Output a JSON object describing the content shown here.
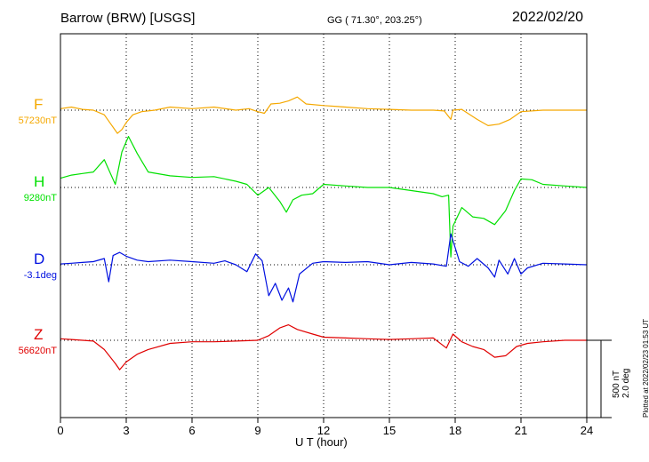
{
  "header": {
    "station": "Barrow (BRW)  [USGS]",
    "coords": "GG ( 71.30°, 203.25°)",
    "date": "2022/02/20"
  },
  "footer": {
    "scale_line1": "500 nT",
    "scale_line2": "2.0 deg",
    "plotted_at": "Plotted at 2022/02/23 01:53 UT"
  },
  "chart_data": {
    "type": "line",
    "xlabel": "U T (hour)",
    "xlim": [
      0,
      24
    ],
    "xticks": [
      0,
      3,
      6,
      9,
      12,
      15,
      18,
      21,
      24
    ],
    "grid": true,
    "scale": "500 nT / 2.0 deg per vertical division",
    "series": [
      {
        "name": "F",
        "baseline_label": "57230nT",
        "color": "#f5a800",
        "points": [
          [
            0,
            10
          ],
          [
            0.5,
            20
          ],
          [
            1,
            5
          ],
          [
            1.5,
            0
          ],
          [
            2,
            -30
          ],
          [
            2.3,
            -90
          ],
          [
            2.6,
            -150
          ],
          [
            2.8,
            -125
          ],
          [
            3,
            -80
          ],
          [
            3.3,
            -30
          ],
          [
            3.7,
            -10
          ],
          [
            4.3,
            0
          ],
          [
            5,
            20
          ],
          [
            6,
            10
          ],
          [
            7,
            20
          ],
          [
            8,
            0
          ],
          [
            8.6,
            10
          ],
          [
            9,
            -10
          ],
          [
            9.3,
            -20
          ],
          [
            9.6,
            40
          ],
          [
            10,
            45
          ],
          [
            10.4,
            60
          ],
          [
            10.8,
            85
          ],
          [
            11.2,
            40
          ],
          [
            12,
            30
          ],
          [
            13,
            20
          ],
          [
            14,
            10
          ],
          [
            15,
            5
          ],
          [
            16,
            0
          ],
          [
            17,
            0
          ],
          [
            17.5,
            -5
          ],
          [
            17.8,
            -60
          ],
          [
            17.9,
            0
          ],
          [
            18.3,
            5
          ],
          [
            19,
            -60
          ],
          [
            19.5,
            -100
          ],
          [
            20,
            -90
          ],
          [
            20.5,
            -60
          ],
          [
            21,
            -10
          ],
          [
            22,
            0
          ],
          [
            23,
            0
          ],
          [
            24,
            0
          ]
        ]
      },
      {
        "name": "H",
        "baseline_label": "9280nT",
        "color": "#00e000",
        "points": [
          [
            0,
            60
          ],
          [
            0.5,
            80
          ],
          [
            1,
            90
          ],
          [
            1.5,
            100
          ],
          [
            2,
            180
          ],
          [
            2.5,
            20
          ],
          [
            2.8,
            230
          ],
          [
            3.1,
            330
          ],
          [
            3.5,
            220
          ],
          [
            4,
            100
          ],
          [
            5,
            75
          ],
          [
            6,
            65
          ],
          [
            7,
            70
          ],
          [
            8,
            40
          ],
          [
            8.5,
            20
          ],
          [
            9,
            -50
          ],
          [
            9.5,
            0
          ],
          [
            10,
            -90
          ],
          [
            10.3,
            -160
          ],
          [
            10.6,
            -80
          ],
          [
            11,
            -50
          ],
          [
            11.5,
            -40
          ],
          [
            12,
            20
          ],
          [
            13,
            10
          ],
          [
            14,
            0
          ],
          [
            15,
            0
          ],
          [
            16,
            -20
          ],
          [
            17,
            -40
          ],
          [
            17.4,
            -60
          ],
          [
            17.7,
            -50
          ],
          [
            17.8,
            -450
          ],
          [
            17.9,
            -250
          ],
          [
            18.3,
            -130
          ],
          [
            18.8,
            -190
          ],
          [
            19.3,
            -200
          ],
          [
            19.8,
            -240
          ],
          [
            20.3,
            -150
          ],
          [
            20.7,
            -20
          ],
          [
            21,
            55
          ],
          [
            21.5,
            50
          ],
          [
            22,
            20
          ],
          [
            23,
            10
          ],
          [
            24,
            0
          ]
        ]
      },
      {
        "name": "D",
        "baseline_label": "-3.1deg",
        "color": "#0010e0",
        "points": [
          [
            0,
            5
          ],
          [
            0.5,
            10
          ],
          [
            1,
            15
          ],
          [
            1.5,
            20
          ],
          [
            2,
            40
          ],
          [
            2.2,
            -110
          ],
          [
            2.4,
            60
          ],
          [
            2.7,
            80
          ],
          [
            3,
            55
          ],
          [
            3.5,
            30
          ],
          [
            4,
            20
          ],
          [
            5,
            30
          ],
          [
            6,
            20
          ],
          [
            7,
            10
          ],
          [
            7.5,
            25
          ],
          [
            8,
            0
          ],
          [
            8.5,
            -45
          ],
          [
            8.9,
            70
          ],
          [
            9.2,
            25
          ],
          [
            9.5,
            -200
          ],
          [
            9.8,
            -120
          ],
          [
            10.1,
            -230
          ],
          [
            10.4,
            -150
          ],
          [
            10.6,
            -240
          ],
          [
            10.9,
            -60
          ],
          [
            11.5,
            10
          ],
          [
            12,
            20
          ],
          [
            13,
            15
          ],
          [
            14,
            20
          ],
          [
            15,
            0
          ],
          [
            16,
            15
          ],
          [
            17,
            5
          ],
          [
            17.6,
            -10
          ],
          [
            17.8,
            200
          ],
          [
            18.2,
            20
          ],
          [
            18.6,
            -10
          ],
          [
            19,
            40
          ],
          [
            19.5,
            -20
          ],
          [
            19.8,
            -80
          ],
          [
            20,
            30
          ],
          [
            20.4,
            -60
          ],
          [
            20.7,
            40
          ],
          [
            21,
            -60
          ],
          [
            21.3,
            -20
          ],
          [
            22,
            10
          ],
          [
            23,
            5
          ],
          [
            24,
            0
          ]
        ]
      },
      {
        "name": "Z",
        "baseline_label": "56620nT",
        "color": "#e00000",
        "points": [
          [
            0,
            10
          ],
          [
            0.5,
            5
          ],
          [
            1,
            0
          ],
          [
            1.5,
            -5
          ],
          [
            2,
            -60
          ],
          [
            2.5,
            -150
          ],
          [
            2.7,
            -190
          ],
          [
            3,
            -140
          ],
          [
            3.5,
            -90
          ],
          [
            4,
            -60
          ],
          [
            5,
            -20
          ],
          [
            6,
            -10
          ],
          [
            7,
            -10
          ],
          [
            8,
            -5
          ],
          [
            9,
            0
          ],
          [
            9.5,
            30
          ],
          [
            10,
            80
          ],
          [
            10.4,
            100
          ],
          [
            10.8,
            70
          ],
          [
            11.5,
            40
          ],
          [
            12,
            20
          ],
          [
            13,
            15
          ],
          [
            14,
            10
          ],
          [
            15,
            5
          ],
          [
            16,
            10
          ],
          [
            17,
            15
          ],
          [
            17.6,
            -50
          ],
          [
            17.9,
            40
          ],
          [
            18.3,
            -10
          ],
          [
            18.8,
            -40
          ],
          [
            19.3,
            -60
          ],
          [
            19.8,
            -110
          ],
          [
            20.3,
            -100
          ],
          [
            20.8,
            -40
          ],
          [
            21.3,
            -20
          ],
          [
            22,
            -10
          ],
          [
            23,
            0
          ],
          [
            24,
            0
          ]
        ]
      }
    ]
  }
}
